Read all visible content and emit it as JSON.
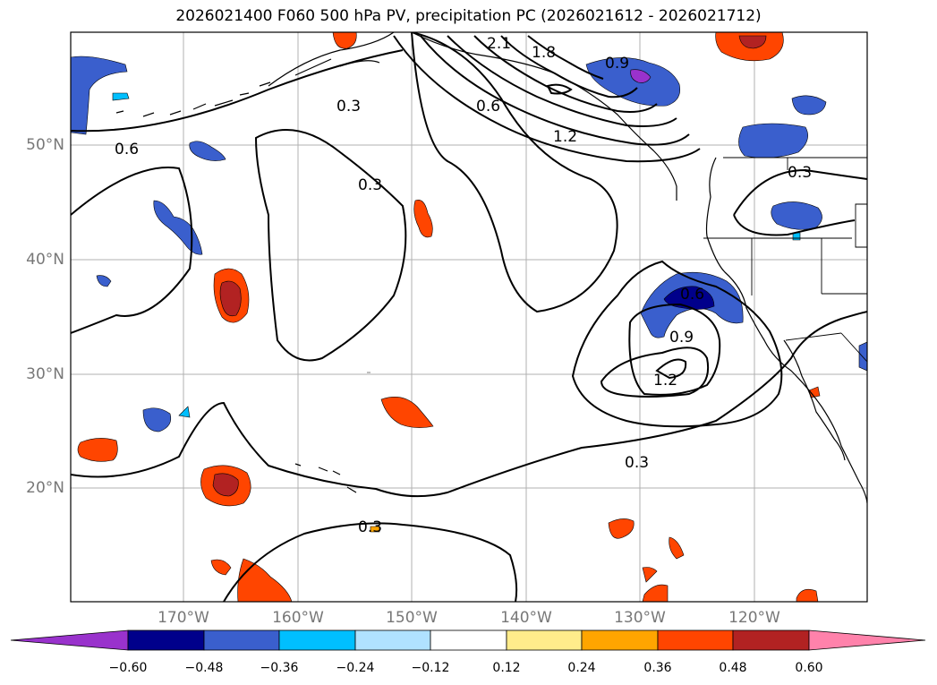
{
  "title": "2026021400 F060 500 hPa PV, precipitation PC (2026021612 - 2026021712)",
  "lat_labels": [
    "50°N",
    "40°N",
    "30°N",
    "20°N"
  ],
  "lon_labels": [
    "170°W",
    "160°W",
    "150°W",
    "140°W",
    "130°W",
    "120°W"
  ],
  "contour_labels": [
    "2.1",
    "1.8",
    "0.9",
    "0.3",
    "0.6",
    "1.2",
    "0.6",
    "0.3",
    "0.3",
    "0.6",
    "0.9",
    "1.2",
    "0.3",
    "0.3"
  ],
  "colorbar": {
    "ticks": [
      "−0.60",
      "−0.48",
      "−0.36",
      "−0.24",
      "−0.12",
      "0.12",
      "0.24",
      "0.36",
      "0.48",
      "0.60"
    ],
    "colors": [
      "#9932CC",
      "#00008B",
      "#3A5FCD",
      "#00BFFF",
      "#B0E2FF",
      "#FFFFFF",
      "#FFEC8B",
      "#FFA500",
      "#FF4500",
      "#B22222",
      "#FF82AB"
    ]
  },
  "fill_colors": {
    "negative_light": "#00BFFF",
    "negative_mid": "#3A5FCD",
    "negative_dark": "#00008B",
    "negative_extreme": "#9932CC",
    "positive_light": "#FFEC8B",
    "positive_mid": "#FFA500",
    "positive_strong": "#FF4500",
    "positive_dark": "#B22222"
  }
}
